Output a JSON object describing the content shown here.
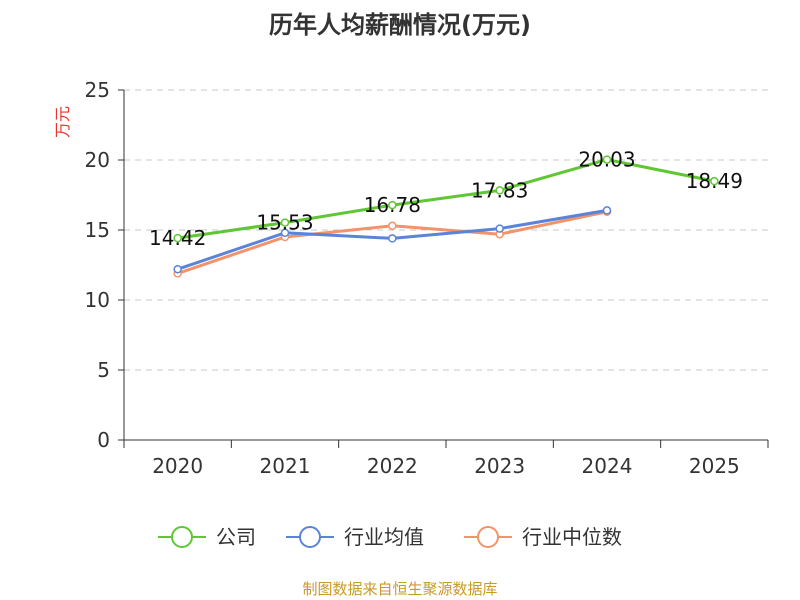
{
  "chart_data": {
    "type": "line",
    "title": "历年人均薪酬情况(万元)",
    "ylabel": "万元",
    "xlabel": "",
    "categories": [
      "2020",
      "2021",
      "2022",
      "2023",
      "2024",
      "2025"
    ],
    "ylim": [
      0,
      25
    ],
    "yticks": [
      "0",
      "5",
      "10",
      "15",
      "20",
      "25"
    ],
    "grid": true,
    "legend_position": "bottom",
    "series": [
      {
        "name": "公司",
        "color": "#5fc733",
        "values": [
          14.42,
          15.53,
          16.78,
          17.83,
          20.03,
          18.49
        ],
        "labels": [
          "14.42",
          "15.53",
          "16.78",
          "17.83",
          "20.03",
          "18.49"
        ]
      },
      {
        "name": "行业均值",
        "color": "#5b84d8",
        "values": [
          12.2,
          14.8,
          14.4,
          15.1,
          16.4,
          null
        ]
      },
      {
        "name": "行业中位数",
        "color": "#f4926a",
        "values": [
          11.9,
          14.5,
          15.3,
          14.7,
          16.3,
          null
        ]
      }
    ]
  },
  "source": "制图数据来自恒生聚源数据库"
}
